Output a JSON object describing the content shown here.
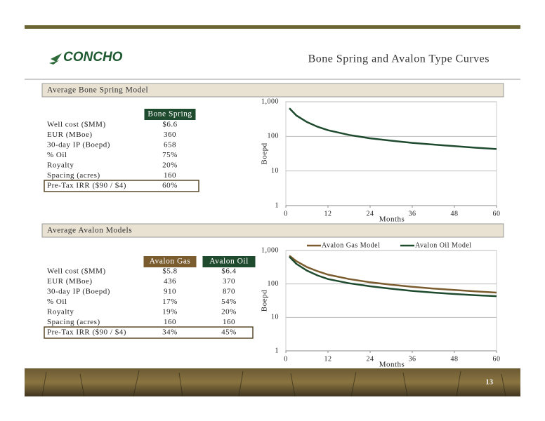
{
  "header": {
    "logo": "CONCHO",
    "title": "Bone Spring and Avalon Type Curves"
  },
  "bone_spring": {
    "heading": "Average Bone Spring Model",
    "columns": [
      "Bone Spring"
    ],
    "rows": [
      [
        "Well cost ($MM)",
        "$6.6"
      ],
      [
        "EUR (MBoe)",
        "360"
      ],
      [
        "30-day IP (Boepd)",
        "658"
      ],
      [
        "% Oil",
        "75%"
      ],
      [
        "Royalty",
        "20%"
      ],
      [
        "Spacing (acres)",
        "160"
      ],
      [
        "Pre-Tax IRR ($90 / $4)",
        "60%"
      ]
    ]
  },
  "avalon": {
    "heading": "Average Avalon Models",
    "columns": [
      "Avalon Gas",
      "Avalon Oil"
    ],
    "rows": [
      [
        "Well cost ($MM)",
        "$5.8",
        "$6.4"
      ],
      [
        "EUR (MBoe)",
        "436",
        "370"
      ],
      [
        "30-day IP (Boepd)",
        "910",
        "870"
      ],
      [
        "% Oil",
        "17%",
        "54%"
      ],
      [
        "Royalty",
        "19%",
        "20%"
      ],
      [
        "Spacing (acres)",
        "160",
        "160"
      ],
      [
        "Pre-Tax IRR ($90 / $4)",
        "34%",
        "45%"
      ]
    ]
  },
  "chart_data": [
    {
      "type": "line",
      "x": [
        1,
        3,
        6,
        9,
        12,
        18,
        24,
        30,
        36,
        42,
        48,
        54,
        60
      ],
      "series": [
        {
          "color": "#1e4a2e",
          "values": [
            650,
            400,
            260,
            190,
            150,
            110,
            88,
            75,
            65,
            58,
            52,
            47,
            43
          ]
        }
      ],
      "xlim": [
        0,
        60
      ],
      "xticks": [
        0,
        12,
        24,
        36,
        48,
        60
      ],
      "ylim": [
        1,
        1000
      ],
      "yticks": [
        {
          "value": 1000,
          "label": "1,000"
        },
        100,
        10,
        1
      ],
      "log_y": true,
      "grid": true,
      "xlabel": "Months",
      "ylabel": "Boepd"
    },
    {
      "type": "line",
      "x": [
        1,
        3,
        6,
        9,
        12,
        18,
        24,
        30,
        36,
        42,
        48,
        54,
        60
      ],
      "series": [
        {
          "name": "Avalon Gas Model",
          "color": "#7a5c2e",
          "values": [
            700,
            480,
            320,
            240,
            190,
            140,
            112,
            95,
            82,
            73,
            66,
            60,
            55
          ]
        },
        {
          "name": "Avalon Oil Model",
          "color": "#1e4a2e",
          "values": [
            650,
            400,
            250,
            180,
            140,
            105,
            85,
            72,
            62,
            55,
            50,
            46,
            43
          ]
        }
      ],
      "xlim": [
        0,
        60
      ],
      "xticks": [
        0,
        12,
        24,
        36,
        48,
        60
      ],
      "ylim": [
        1,
        1000
      ],
      "yticks": [
        {
          "value": 1000,
          "label": "1,000"
        },
        100,
        10,
        1
      ],
      "log_y": true,
      "grid": true,
      "legend": "top",
      "xlabel": "Months",
      "ylabel": "Boepd"
    }
  ],
  "page_number": "13"
}
